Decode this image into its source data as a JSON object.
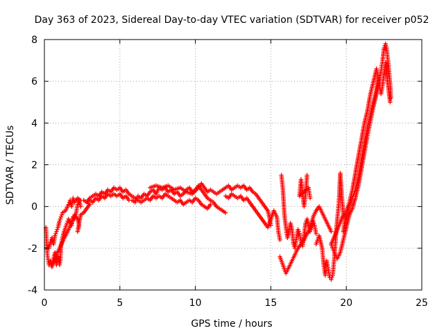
{
  "chart_data": {
    "type": "scatter",
    "title": "Day 363 of 2023, Sidereal Day-to-day VTEC variation (SDTVAR) for receiver p052",
    "xlabel": "GPS time / hours",
    "ylabel": "SDTVAR / TECUs",
    "xlim": [
      0,
      25
    ],
    "ylim": [
      -4,
      8
    ],
    "x_ticks": [
      "0",
      "5",
      "10",
      "15",
      "20",
      "25"
    ],
    "y_ticks": [
      "-4",
      "-2",
      "0",
      "2",
      "4",
      "6",
      "8"
    ],
    "grid": true,
    "marker": "+",
    "series": [
      {
        "name": "p052",
        "color": "#ff0000",
        "points": [
          [
            0.1,
            -1.0
          ],
          [
            0.15,
            -1.8
          ],
          [
            0.2,
            -2.3
          ],
          [
            0.3,
            -2.8
          ],
          [
            0.4,
            -2.6
          ],
          [
            0.5,
            -2.9
          ],
          [
            0.6,
            -2.5
          ],
          [
            0.7,
            -2.2
          ],
          [
            0.8,
            -2.8
          ],
          [
            0.9,
            -2.4
          ],
          [
            1.0,
            -2.8
          ],
          [
            1.05,
            -2.6
          ],
          [
            1.1,
            -1.9
          ],
          [
            1.2,
            -1.5
          ],
          [
            1.3,
            -1.2
          ],
          [
            1.5,
            -0.8
          ],
          [
            1.6,
            -0.6
          ],
          [
            1.8,
            -0.9
          ],
          [
            1.9,
            -0.5
          ],
          [
            2.0,
            -0.6
          ],
          [
            2.1,
            -0.3
          ],
          [
            2.2,
            0.1
          ],
          [
            2.3,
            0.3
          ],
          [
            2.4,
            0.0
          ],
          [
            0.3,
            -2.0
          ],
          [
            0.4,
            -1.7
          ],
          [
            0.5,
            -1.5
          ],
          [
            0.6,
            -1.8
          ],
          [
            0.7,
            -1.4
          ],
          [
            0.8,
            -1.2
          ],
          [
            0.9,
            -1.0
          ],
          [
            1.0,
            -0.7
          ],
          [
            1.1,
            -0.5
          ],
          [
            1.2,
            -0.3
          ],
          [
            1.4,
            -0.2
          ],
          [
            1.6,
            0.1
          ],
          [
            1.7,
            0.3
          ],
          [
            1.8,
            0.0
          ],
          [
            1.9,
            0.4
          ],
          [
            2.0,
            0.2
          ],
          [
            2.2,
            0.4
          ],
          [
            2.4,
            0.3
          ],
          [
            0.6,
            -2.7
          ],
          [
            0.8,
            -2.3
          ],
          [
            1.0,
            -2.0
          ],
          [
            1.2,
            -1.7
          ],
          [
            1.4,
            -1.4
          ],
          [
            1.6,
            -1.1
          ],
          [
            1.8,
            -0.8
          ],
          [
            2.0,
            -0.4
          ],
          [
            2.2,
            -0.6
          ],
          [
            2.3,
            -0.9
          ],
          [
            2.2,
            -1.2
          ],
          [
            2.4,
            -0.4
          ],
          [
            2.6,
            -0.3
          ],
          [
            2.8,
            -0.1
          ],
          [
            3.0,
            0.1
          ],
          [
            2.6,
            0.3
          ],
          [
            2.8,
            0.2
          ],
          [
            3.0,
            0.4
          ],
          [
            3.2,
            0.5
          ],
          [
            3.4,
            0.6
          ],
          [
            3.6,
            0.5
          ],
          [
            3.8,
            0.7
          ],
          [
            4.0,
            0.6
          ],
          [
            4.2,
            0.8
          ],
          [
            4.4,
            0.7
          ],
          [
            4.6,
            0.9
          ],
          [
            4.8,
            0.8
          ],
          [
            5.0,
            0.9
          ],
          [
            5.2,
            0.7
          ],
          [
            5.4,
            0.8
          ],
          [
            5.6,
            0.6
          ],
          [
            5.8,
            0.5
          ],
          [
            6.0,
            0.4
          ],
          [
            3.0,
            0.3
          ],
          [
            3.2,
            0.2
          ],
          [
            3.4,
            0.4
          ],
          [
            3.6,
            0.3
          ],
          [
            3.8,
            0.5
          ],
          [
            4.0,
            0.4
          ],
          [
            4.2,
            0.6
          ],
          [
            4.4,
            0.5
          ],
          [
            4.6,
            0.6
          ],
          [
            4.8,
            0.5
          ],
          [
            5.0,
            0.6
          ],
          [
            5.2,
            0.4
          ],
          [
            5.4,
            0.5
          ],
          [
            5.6,
            0.3
          ],
          [
            5.8,
            0.3
          ],
          [
            6.0,
            0.2
          ],
          [
            6.2,
            0.5
          ],
          [
            6.4,
            0.4
          ],
          [
            6.6,
            0.6
          ],
          [
            6.8,
            0.5
          ],
          [
            7.0,
            0.7
          ],
          [
            7.2,
            0.8
          ],
          [
            7.4,
            0.6
          ],
          [
            7.6,
            0.9
          ],
          [
            7.8,
            0.8
          ],
          [
            8.0,
            0.9
          ],
          [
            8.2,
            0.7
          ],
          [
            8.4,
            0.8
          ],
          [
            8.6,
            0.6
          ],
          [
            8.8,
            0.7
          ],
          [
            9.0,
            0.5
          ],
          [
            9.2,
            0.6
          ],
          [
            9.4,
            0.8
          ],
          [
            9.6,
            0.9
          ],
          [
            9.8,
            0.7
          ],
          [
            10.0,
            0.8
          ],
          [
            10.2,
            1.0
          ],
          [
            10.4,
            0.8
          ],
          [
            10.6,
            0.6
          ],
          [
            10.8,
            0.4
          ],
          [
            11.0,
            0.3
          ],
          [
            11.2,
            0.2
          ],
          [
            11.4,
            0.0
          ],
          [
            11.6,
            -0.1
          ],
          [
            11.8,
            -0.2
          ],
          [
            12.0,
            -0.3
          ],
          [
            6.2,
            0.3
          ],
          [
            6.4,
            0.2
          ],
          [
            6.6,
            0.3
          ],
          [
            6.8,
            0.4
          ],
          [
            7.0,
            0.3
          ],
          [
            7.2,
            0.5
          ],
          [
            7.4,
            0.4
          ],
          [
            7.6,
            0.5
          ],
          [
            7.8,
            0.4
          ],
          [
            8.0,
            0.6
          ],
          [
            8.2,
            0.5
          ],
          [
            8.4,
            0.4
          ],
          [
            8.6,
            0.3
          ],
          [
            8.8,
            0.2
          ],
          [
            9.0,
            0.3
          ],
          [
            9.2,
            0.1
          ],
          [
            9.4,
            0.2
          ],
          [
            9.6,
            0.3
          ],
          [
            9.8,
            0.2
          ],
          [
            10.0,
            0.4
          ],
          [
            10.2,
            0.3
          ],
          [
            10.4,
            0.1
          ],
          [
            10.6,
            0.0
          ],
          [
            10.8,
            -0.1
          ],
          [
            11.0,
            0.1
          ],
          [
            7.0,
            0.9
          ],
          [
            7.4,
            1.0
          ],
          [
            7.8,
            0.9
          ],
          [
            8.2,
            1.0
          ],
          [
            8.6,
            0.8
          ],
          [
            9.0,
            0.9
          ],
          [
            9.4,
            0.7
          ],
          [
            9.8,
            0.6
          ],
          [
            10.2,
            0.9
          ],
          [
            10.4,
            1.1
          ],
          [
            10.6,
            0.9
          ],
          [
            10.8,
            0.7
          ],
          [
            11.0,
            0.8
          ],
          [
            11.4,
            0.6
          ],
          [
            11.8,
            0.8
          ],
          [
            12.0,
            0.9
          ],
          [
            12.2,
            1.0
          ],
          [
            12.4,
            0.8
          ],
          [
            12.6,
            0.9
          ],
          [
            12.8,
            1.0
          ],
          [
            13.0,
            0.9
          ],
          [
            13.2,
            1.0
          ],
          [
            13.4,
            0.8
          ],
          [
            13.6,
            0.9
          ],
          [
            13.8,
            0.7
          ],
          [
            14.0,
            0.6
          ],
          [
            14.2,
            0.4
          ],
          [
            14.4,
            0.2
          ],
          [
            14.6,
            0.0
          ],
          [
            14.8,
            -0.2
          ],
          [
            14.9,
            -0.5
          ],
          [
            15.0,
            -0.9
          ],
          [
            12.0,
            0.5
          ],
          [
            12.2,
            0.4
          ],
          [
            12.4,
            0.6
          ],
          [
            12.6,
            0.5
          ],
          [
            12.8,
            0.4
          ],
          [
            13.0,
            0.5
          ],
          [
            13.2,
            0.3
          ],
          [
            13.4,
            0.4
          ],
          [
            13.6,
            0.2
          ],
          [
            13.8,
            0.0
          ],
          [
            14.0,
            -0.2
          ],
          [
            14.2,
            -0.4
          ],
          [
            14.4,
            -0.6
          ],
          [
            14.6,
            -0.8
          ],
          [
            14.8,
            -1.0
          ],
          [
            15.2,
            -0.2
          ],
          [
            15.4,
            -0.5
          ],
          [
            15.5,
            -1.2
          ],
          [
            15.6,
            -1.6
          ],
          [
            15.7,
            1.5
          ],
          [
            15.8,
            0.8
          ],
          [
            15.9,
            -0.4
          ],
          [
            16.0,
            -1.0
          ],
          [
            16.1,
            -1.5
          ],
          [
            16.2,
            -1.2
          ],
          [
            16.3,
            -0.8
          ],
          [
            16.4,
            -1.1
          ],
          [
            16.5,
            -1.8
          ],
          [
            16.6,
            -2.0
          ],
          [
            16.7,
            -1.5
          ],
          [
            16.8,
            -1.1
          ],
          [
            16.9,
            -1.3
          ],
          [
            17.0,
            -1.7
          ],
          [
            17.1,
            -1.9
          ],
          [
            17.2,
            -1.4
          ],
          [
            17.3,
            -0.8
          ],
          [
            17.4,
            -0.6
          ],
          [
            17.5,
            -0.9
          ],
          [
            17.6,
            -1.2
          ],
          [
            17.7,
            -1.0
          ],
          [
            17.8,
            -0.7
          ],
          [
            17.9,
            -0.9
          ],
          [
            18.0,
            -1.3
          ],
          [
            15.6,
            -2.4
          ],
          [
            15.8,
            -2.8
          ],
          [
            16.0,
            -3.2
          ],
          [
            16.2,
            -2.9
          ],
          [
            16.4,
            -2.6
          ],
          [
            16.6,
            -2.3
          ],
          [
            16.8,
            -2.0
          ],
          [
            17.0,
            -1.8
          ],
          [
            17.2,
            -1.6
          ],
          [
            17.4,
            -1.3
          ],
          [
            17.6,
            -1.1
          ],
          [
            17.8,
            -0.5
          ],
          [
            18.0,
            -0.2
          ],
          [
            18.2,
            0.0
          ],
          [
            18.4,
            -0.3
          ],
          [
            18.6,
            -0.6
          ],
          [
            18.8,
            -0.9
          ],
          [
            19.0,
            -1.2
          ],
          [
            17.4,
            1.5
          ],
          [
            17.3,
            0.6
          ],
          [
            17.2,
            0.0
          ],
          [
            17.0,
            1.3
          ],
          [
            16.9,
            0.5
          ],
          [
            17.5,
            0.9
          ],
          [
            17.6,
            0.4
          ],
          [
            18.0,
            -1.8
          ],
          [
            18.2,
            -1.4
          ],
          [
            18.4,
            -2.0
          ],
          [
            18.5,
            -2.8
          ],
          [
            18.6,
            -3.3
          ],
          [
            18.7,
            -2.6
          ],
          [
            18.8,
            -3.0
          ],
          [
            18.9,
            -3.4
          ],
          [
            19.0,
            -3.5
          ],
          [
            19.1,
            -3.3
          ],
          [
            19.2,
            -2.5
          ],
          [
            19.3,
            -1.5
          ],
          [
            19.4,
            -0.6
          ],
          [
            19.5,
            0.1
          ],
          [
            19.6,
            1.6
          ],
          [
            19.7,
            0.5
          ],
          [
            19.8,
            -0.4
          ],
          [
            19.0,
            -1.8
          ],
          [
            19.2,
            -2.2
          ],
          [
            19.4,
            -2.5
          ],
          [
            19.6,
            -2.2
          ],
          [
            19.8,
            -1.6
          ],
          [
            20.0,
            -1.0
          ],
          [
            20.2,
            -0.4
          ],
          [
            20.4,
            -0.1
          ],
          [
            20.6,
            0.4
          ],
          [
            20.8,
            1.0
          ],
          [
            21.0,
            1.8
          ],
          [
            21.2,
            2.6
          ],
          [
            21.4,
            3.4
          ],
          [
            21.6,
            4.1
          ],
          [
            21.8,
            4.8
          ],
          [
            22.0,
            5.4
          ],
          [
            22.2,
            6.1
          ],
          [
            22.3,
            6.5
          ],
          [
            22.4,
            7.0
          ],
          [
            22.5,
            7.6
          ],
          [
            22.6,
            7.8
          ],
          [
            22.7,
            7.4
          ],
          [
            22.8,
            6.7
          ],
          [
            22.9,
            5.9
          ],
          [
            22.95,
            5.2
          ],
          [
            20.0,
            -0.6
          ],
          [
            20.2,
            0.0
          ],
          [
            20.4,
            0.4
          ],
          [
            20.6,
            0.8
          ],
          [
            20.8,
            1.4
          ],
          [
            21.0,
            2.2
          ],
          [
            21.2,
            3.0
          ],
          [
            21.4,
            3.8
          ],
          [
            21.6,
            4.4
          ],
          [
            21.8,
            5.0
          ],
          [
            22.0,
            5.6
          ],
          [
            22.1,
            6.2
          ],
          [
            22.2,
            5.8
          ],
          [
            22.3,
            5.4
          ],
          [
            22.4,
            5.8
          ],
          [
            22.5,
            6.4
          ],
          [
            22.6,
            6.9
          ],
          [
            22.7,
            6.2
          ],
          [
            22.8,
            5.6
          ],
          [
            22.9,
            5.0
          ],
          [
            19.8,
            -1.2
          ],
          [
            20.0,
            -0.2
          ],
          [
            20.2,
            0.2
          ],
          [
            20.4,
            0.8
          ],
          [
            20.6,
            1.6
          ],
          [
            20.8,
            2.4
          ],
          [
            21.0,
            3.2
          ],
          [
            21.2,
            4.0
          ],
          [
            21.4,
            4.6
          ],
          [
            21.6,
            5.4
          ],
          [
            21.8,
            6.0
          ],
          [
            22.0,
            6.6
          ],
          [
            22.1,
            6.2
          ],
          [
            22.2,
            5.8
          ]
        ]
      }
    ]
  }
}
